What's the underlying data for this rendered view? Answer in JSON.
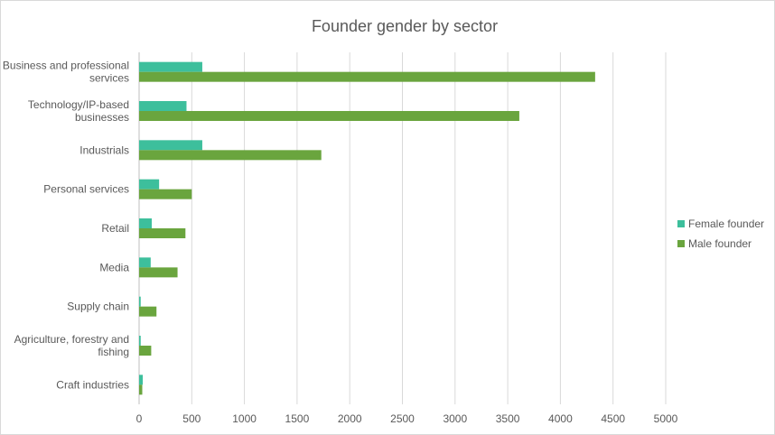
{
  "chart_data": {
    "type": "bar",
    "orientation": "horizontal",
    "title": "Founder gender by sector",
    "categories": [
      "Business and professional services",
      "Technology/IP-based businesses",
      "Industrials",
      "Personal services",
      "Retail",
      "Media",
      "Supply chain",
      "Agriculture, forestry and fishing",
      "Craft industries"
    ],
    "category_label_lines": [
      [
        "Business and professional",
        "services"
      ],
      [
        "Technology/IP-based",
        "businesses"
      ],
      [
        "Industrials"
      ],
      [
        "Personal services"
      ],
      [
        "Retail"
      ],
      [
        "Media"
      ],
      [
        "Supply chain"
      ],
      [
        "Agriculture, forestry and",
        "fishing"
      ],
      [
        "Craft industries"
      ]
    ],
    "series": [
      {
        "name": "Female founder",
        "color": "#3dbf9c",
        "values": [
          600,
          450,
          600,
          190,
          120,
          110,
          15,
          15,
          35
        ]
      },
      {
        "name": "Male founder",
        "color": "#6aa53e",
        "values": [
          4330,
          3610,
          1730,
          500,
          440,
          365,
          165,
          115,
          30
        ]
      }
    ],
    "xlim": [
      0,
      5000
    ],
    "x_ticks": [
      0,
      500,
      1000,
      1500,
      2000,
      2500,
      3000,
      3500,
      4000,
      4500,
      5000
    ],
    "xlabel": "",
    "ylabel": "",
    "grid": "vertical gridlines",
    "legend_position": "right"
  }
}
